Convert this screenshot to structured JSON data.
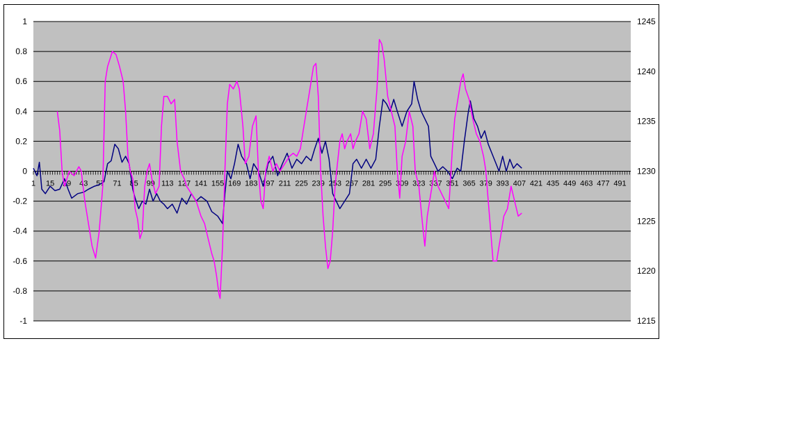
{
  "chart_data": {
    "type": "line",
    "title": "",
    "xlabel": "",
    "ylabel": "",
    "y2label": "",
    "plot_background": "#c0c0c0",
    "grid": true,
    "legend": "none",
    "x_ticks": [
      "1",
      "15",
      "29",
      "43",
      "57",
      "71",
      "85",
      "99",
      "113",
      "127",
      "141",
      "155",
      "169",
      "183",
      "197",
      "211",
      "225",
      "239",
      "253",
      "267",
      "281",
      "295",
      "309",
      "323",
      "337",
      "351",
      "365",
      "379",
      "393",
      "407",
      "421",
      "435",
      "449",
      "463",
      "477",
      "491"
    ],
    "x_range": [
      1,
      500
    ],
    "y_left": {
      "min": -1,
      "max": 1,
      "ticks": [
        "1",
        "0.8",
        "0.6",
        "0.4",
        "0.2",
        "0",
        "-0.2",
        "-0.4",
        "-0.6",
        "-0.8",
        "-1"
      ]
    },
    "y_right": {
      "min": 1215,
      "max": 1245,
      "ticks": [
        "1245",
        "1240",
        "1235",
        "1230",
        "1225",
        "1220",
        "1215"
      ]
    },
    "series": [
      {
        "axis": "left",
        "color": "#000080",
        "points": [
          [
            1,
            0.02
          ],
          [
            4,
            -0.03
          ],
          [
            6,
            0.06
          ],
          [
            8,
            -0.12
          ],
          [
            11,
            -0.15
          ],
          [
            15,
            -0.1
          ],
          [
            19,
            -0.13
          ],
          [
            23,
            -0.12
          ],
          [
            27,
            -0.05
          ],
          [
            30,
            -0.12
          ],
          [
            33,
            -0.18
          ],
          [
            38,
            -0.15
          ],
          [
            43,
            -0.14
          ],
          [
            47,
            -0.12
          ],
          [
            52,
            -0.1
          ],
          [
            56,
            -0.09
          ],
          [
            60,
            -0.07
          ],
          [
            63,
            0.05
          ],
          [
            66,
            0.07
          ],
          [
            69,
            0.18
          ],
          [
            72,
            0.15
          ],
          [
            75,
            0.06
          ],
          [
            78,
            0.1
          ],
          [
            81,
            0.05
          ],
          [
            84,
            -0.12
          ],
          [
            86,
            -0.18
          ],
          [
            89,
            -0.25
          ],
          [
            92,
            -0.2
          ],
          [
            95,
            -0.22
          ],
          [
            98,
            -0.12
          ],
          [
            101,
            -0.2
          ],
          [
            104,
            -0.15
          ],
          [
            107,
            -0.2
          ],
          [
            110,
            -0.22
          ],
          [
            113,
            -0.25
          ],
          [
            117,
            -0.22
          ],
          [
            121,
            -0.28
          ],
          [
            125,
            -0.18
          ],
          [
            129,
            -0.22
          ],
          [
            133,
            -0.15
          ],
          [
            137,
            -0.2
          ],
          [
            141,
            -0.17
          ],
          [
            146,
            -0.2
          ],
          [
            150,
            -0.27
          ],
          [
            155,
            -0.3
          ],
          [
            159,
            -0.35
          ],
          [
            161,
            -0.15
          ],
          [
            163,
            0.0
          ],
          [
            166,
            -0.05
          ],
          [
            169,
            0.05
          ],
          [
            172,
            0.18
          ],
          [
            175,
            0.1
          ],
          [
            179,
            0.05
          ],
          [
            182,
            -0.05
          ],
          [
            185,
            0.05
          ],
          [
            189,
            0.0
          ],
          [
            193,
            -0.1
          ],
          [
            197,
            0.05
          ],
          [
            201,
            0.1
          ],
          [
            205,
            -0.03
          ],
          [
            209,
            0.05
          ],
          [
            213,
            0.12
          ],
          [
            217,
            0.02
          ],
          [
            221,
            0.08
          ],
          [
            225,
            0.05
          ],
          [
            229,
            0.1
          ],
          [
            233,
            0.07
          ],
          [
            236,
            0.15
          ],
          [
            239,
            0.22
          ],
          [
            242,
            0.12
          ],
          [
            245,
            0.2
          ],
          [
            248,
            0.08
          ],
          [
            251,
            -0.15
          ],
          [
            254,
            -0.2
          ],
          [
            257,
            -0.25
          ],
          [
            261,
            -0.2
          ],
          [
            265,
            -0.15
          ],
          [
            268,
            0.05
          ],
          [
            271,
            0.08
          ],
          [
            275,
            0.02
          ],
          [
            279,
            0.08
          ],
          [
            283,
            0.02
          ],
          [
            287,
            0.08
          ],
          [
            290,
            0.3
          ],
          [
            293,
            0.48
          ],
          [
            296,
            0.45
          ],
          [
            299,
            0.4
          ],
          [
            302,
            0.48
          ],
          [
            305,
            0.4
          ],
          [
            309,
            0.3
          ],
          [
            313,
            0.4
          ],
          [
            317,
            0.45
          ],
          [
            319,
            0.6
          ],
          [
            322,
            0.48
          ],
          [
            325,
            0.4
          ],
          [
            328,
            0.35
          ],
          [
            331,
            0.3
          ],
          [
            333,
            0.1
          ],
          [
            336,
            0.05
          ],
          [
            339,
            0.0
          ],
          [
            343,
            0.03
          ],
          [
            347,
            0.0
          ],
          [
            351,
            -0.05
          ],
          [
            355,
            0.02
          ],
          [
            358,
            0.0
          ],
          [
            361,
            0.2
          ],
          [
            364,
            0.38
          ],
          [
            366,
            0.47
          ],
          [
            369,
            0.35
          ],
          [
            372,
            0.3
          ],
          [
            375,
            0.22
          ],
          [
            378,
            0.27
          ],
          [
            381,
            0.18
          ],
          [
            384,
            0.12
          ],
          [
            387,
            0.06
          ],
          [
            390,
            0.0
          ],
          [
            393,
            0.1
          ],
          [
            396,
            0.0
          ],
          [
            399,
            0.08
          ],
          [
            402,
            0.02
          ],
          [
            405,
            0.05
          ],
          [
            409,
            0.02
          ]
        ]
      },
      {
        "axis": "left",
        "color": "#ff00ff",
        "points": [
          [
            21,
            0.4
          ],
          [
            23,
            0.27
          ],
          [
            25,
            0.0
          ],
          [
            27,
            -0.1
          ],
          [
            31,
            0.0
          ],
          [
            35,
            -0.03
          ],
          [
            39,
            0.03
          ],
          [
            41,
            0.0
          ],
          [
            44,
            -0.2
          ],
          [
            47,
            -0.35
          ],
          [
            50,
            -0.5
          ],
          [
            53,
            -0.58
          ],
          [
            56,
            -0.4
          ],
          [
            59,
            -0.1
          ],
          [
            61,
            0.6
          ],
          [
            63,
            0.7
          ],
          [
            65,
            0.75
          ],
          [
            67,
            0.8
          ],
          [
            70,
            0.78
          ],
          [
            73,
            0.7
          ],
          [
            76,
            0.6
          ],
          [
            78,
            0.4
          ],
          [
            80,
            0.1
          ],
          [
            82,
            0.0
          ],
          [
            84,
            -0.05
          ],
          [
            86,
            -0.25
          ],
          [
            88,
            -0.32
          ],
          [
            90,
            -0.45
          ],
          [
            92,
            -0.4
          ],
          [
            94,
            -0.1
          ],
          [
            96,
            0.0
          ],
          [
            98,
            0.05
          ],
          [
            100,
            -0.05
          ],
          [
            103,
            -0.15
          ],
          [
            106,
            -0.1
          ],
          [
            108,
            0.3
          ],
          [
            110,
            0.5
          ],
          [
            113,
            0.5
          ],
          [
            116,
            0.45
          ],
          [
            119,
            0.48
          ],
          [
            121,
            0.2
          ],
          [
            124,
            0.0
          ],
          [
            127,
            -0.05
          ],
          [
            129,
            -0.1
          ],
          [
            133,
            -0.15
          ],
          [
            137,
            -0.2
          ],
          [
            141,
            -0.3
          ],
          [
            144,
            -0.35
          ],
          [
            147,
            -0.45
          ],
          [
            150,
            -0.55
          ],
          [
            152,
            -0.6
          ],
          [
            154,
            -0.7
          ],
          [
            156,
            -0.82
          ],
          [
            157,
            -0.85
          ],
          [
            159,
            -0.5
          ],
          [
            161,
            0.0
          ],
          [
            163,
            0.45
          ],
          [
            165,
            0.58
          ],
          [
            168,
            0.55
          ],
          [
            171,
            0.6
          ],
          [
            173,
            0.55
          ],
          [
            176,
            0.3
          ],
          [
            178,
            0.05
          ],
          [
            181,
            0.1
          ],
          [
            184,
            0.3
          ],
          [
            187,
            0.37
          ],
          [
            189,
            0.0
          ],
          [
            191,
            -0.2
          ],
          [
            193,
            -0.25
          ],
          [
            195,
            0.0
          ],
          [
            198,
            0.1
          ],
          [
            201,
            0.0
          ],
          [
            204,
            0.05
          ],
          [
            207,
            0.0
          ],
          [
            211,
            0.05
          ],
          [
            215,
            0.1
          ],
          [
            218,
            0.12
          ],
          [
            221,
            0.1
          ],
          [
            224,
            0.15
          ],
          [
            227,
            0.3
          ],
          [
            230,
            0.45
          ],
          [
            232,
            0.55
          ],
          [
            235,
            0.7
          ],
          [
            237,
            0.72
          ],
          [
            239,
            0.5
          ],
          [
            241,
            0.0
          ],
          [
            243,
            -0.3
          ],
          [
            245,
            -0.5
          ],
          [
            247,
            -0.65
          ],
          [
            249,
            -0.6
          ],
          [
            251,
            -0.4
          ],
          [
            253,
            -0.1
          ],
          [
            255,
            0.05
          ],
          [
            257,
            0.2
          ],
          [
            259,
            0.25
          ],
          [
            261,
            0.15
          ],
          [
            263,
            0.2
          ],
          [
            266,
            0.25
          ],
          [
            268,
            0.15
          ],
          [
            270,
            0.2
          ],
          [
            273,
            0.25
          ],
          [
            276,
            0.4
          ],
          [
            279,
            0.35
          ],
          [
            282,
            0.15
          ],
          [
            285,
            0.25
          ],
          [
            288,
            0.55
          ],
          [
            290,
            0.88
          ],
          [
            292,
            0.85
          ],
          [
            294,
            0.75
          ],
          [
            297,
            0.5
          ],
          [
            300,
            0.4
          ],
          [
            303,
            0.3
          ],
          [
            305,
            0.0
          ],
          [
            307,
            -0.18
          ],
          [
            309,
            0.1
          ],
          [
            312,
            0.2
          ],
          [
            315,
            0.4
          ],
          [
            318,
            0.3
          ],
          [
            320,
            0.0
          ],
          [
            323,
            -0.1
          ],
          [
            326,
            -0.35
          ],
          [
            328,
            -0.5
          ],
          [
            330,
            -0.3
          ],
          [
            333,
            -0.15
          ],
          [
            336,
            0.0
          ],
          [
            339,
            -0.1
          ],
          [
            342,
            -0.15
          ],
          [
            345,
            -0.2
          ],
          [
            348,
            -0.25
          ],
          [
            351,
            0.15
          ],
          [
            353,
            0.35
          ],
          [
            356,
            0.5
          ],
          [
            358,
            0.6
          ],
          [
            360,
            0.65
          ],
          [
            362,
            0.55
          ],
          [
            365,
            0.48
          ],
          [
            368,
            0.35
          ],
          [
            371,
            0.25
          ],
          [
            374,
            0.2
          ],
          [
            377,
            0.1
          ],
          [
            379,
            0.0
          ],
          [
            381,
            -0.2
          ],
          [
            383,
            -0.4
          ],
          [
            385,
            -0.6
          ],
          [
            388,
            -0.6
          ],
          [
            391,
            -0.45
          ],
          [
            394,
            -0.3
          ],
          [
            397,
            -0.25
          ],
          [
            400,
            -0.1
          ],
          [
            403,
            -0.2
          ],
          [
            406,
            -0.3
          ],
          [
            409,
            -0.28
          ]
        ]
      }
    ]
  }
}
